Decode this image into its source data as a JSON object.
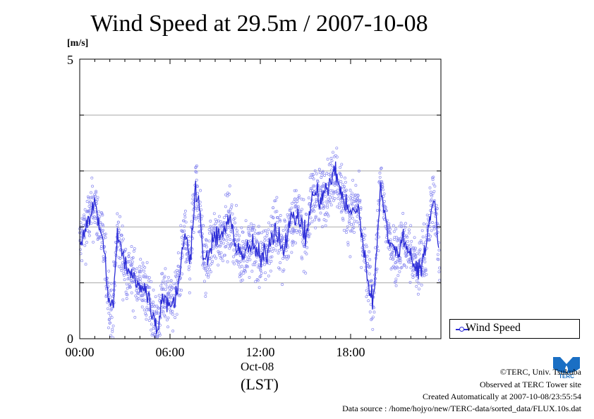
{
  "title": "Wind Speed at 29.5m / 2007-10-08",
  "axis": {
    "y_unit": "[m/s]",
    "date_label": "Oct-08",
    "time_zone": "(LST)"
  },
  "legend": {
    "label": "Wind Speed",
    "color": "#2b2bd6"
  },
  "credits": {
    "copyright": "©TERC, Univ. Tsukuba",
    "observed": "Observed at TERC Tower site",
    "created": "Created Automatically at 2007-10-08/23:55:54",
    "source": "Data source : /home/hojyo/new/TERC-data/sorted_data/FLUX.10s.dat"
  },
  "logo": {
    "text": "TERC",
    "color": "#1a6fc4"
  },
  "chart_data": {
    "type": "line",
    "title": "Wind Speed at 29.5m / 2007-10-08",
    "ylabel": "[m/s]",
    "xlabel": "(LST)",
    "ylim": [
      0,
      5
    ],
    "xlim_hours": [
      0,
      24
    ],
    "x_tick_labels": [
      "00:00",
      "06:00",
      "12:00",
      "18:00"
    ],
    "y_tick_labels": [
      "0",
      "5"
    ],
    "y_gridlines": [
      1,
      2,
      3,
      4
    ],
    "grid": "horizontal",
    "legend_position": "right",
    "series": [
      {
        "name": "Wind Speed",
        "style": "line with scatter of raw samples",
        "x_hours": [
          0.0,
          0.5,
          1.0,
          1.5,
          2.0,
          2.2,
          2.5,
          3.0,
          3.5,
          4.0,
          4.5,
          5.0,
          5.2,
          5.5,
          6.0,
          6.3,
          6.7,
          7.0,
          7.3,
          7.7,
          8.0,
          8.3,
          8.7,
          9.0,
          9.5,
          10.0,
          10.5,
          11.0,
          11.5,
          12.0,
          12.5,
          13.0,
          13.5,
          14.0,
          14.5,
          15.0,
          15.5,
          16.0,
          16.5,
          17.0,
          17.5,
          18.0,
          18.5,
          19.0,
          19.5,
          20.0,
          20.5,
          21.0,
          21.5,
          22.0,
          22.5,
          23.0,
          23.5,
          23.9
        ],
        "values": [
          1.7,
          2.1,
          2.4,
          1.8,
          0.6,
          0.5,
          1.9,
          1.3,
          1.1,
          1.0,
          0.8,
          0.3,
          0.2,
          0.8,
          0.6,
          0.7,
          1.2,
          2.0,
          1.3,
          2.8,
          2.2,
          1.3,
          1.6,
          1.8,
          1.9,
          2.1,
          1.6,
          1.5,
          1.7,
          1.4,
          1.6,
          2.0,
          1.6,
          2.1,
          2.2,
          1.8,
          2.6,
          2.5,
          2.7,
          3.0,
          2.5,
          2.2,
          2.4,
          1.3,
          0.6,
          2.8,
          1.8,
          1.5,
          1.8,
          1.5,
          1.2,
          1.6,
          2.6,
          1.5
        ]
      }
    ]
  }
}
